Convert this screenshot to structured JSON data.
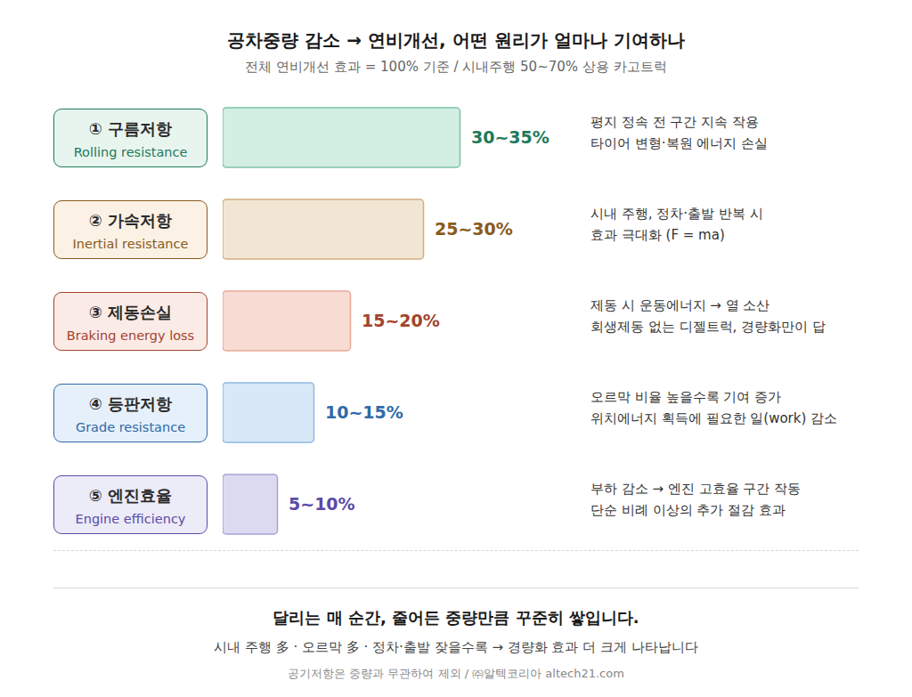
{
  "chart_data": {
    "type": "bar",
    "orientation": "horizontal",
    "title": "공차중량 감소 → 연비개선, 어떤 원리가 얼마나 기여하나",
    "subtitle": "전체 연비개선 효과 = 100% 기준 / 시내주행 50~70% 상용 카고트럭",
    "categories": [
      "① 구름저항",
      "② 가속저항",
      "③ 제동손실",
      "④ 등판저항",
      "⑤ 엔진효율"
    ],
    "category_labels_en": [
      "Rolling resistance",
      "Inertial resistance",
      "Braking energy loss",
      "Grade resistance",
      "Engine efficiency"
    ],
    "values": [
      32.5,
      27.5,
      17.5,
      12.5,
      7.5
    ],
    "value_labels": [
      "30~35%",
      "25~30%",
      "15~20%",
      "10~15%",
      "5~10%"
    ],
    "descriptions": [
      [
        "평지 정속 전 구간 지속 작용",
        "타이어 변형·복원 에너지 손실"
      ],
      [
        "시내 주행, 정차·출발 반복 시",
        "효과 극대화 (F = ma)"
      ],
      [
        "제동 시 운동에너지 → 열 소산",
        "회생제동 없는 디젤트럭, 경량화만이 답"
      ],
      [
        "오르막 비율 높을수록 기여 증가",
        "위치에너지 획득에 필요한 일(work) 감소"
      ],
      [
        "부하 감소 → 엔진 고효율 구간 작동",
        "단순 비례 이상의 추가 절감 효과"
      ]
    ],
    "colors": [
      "#d3eee2",
      "#f1e6d3",
      "#f8dcd4",
      "#d8e8f7",
      "#dcdaf0"
    ],
    "xlim": [
      0,
      50
    ],
    "tick_labels": false,
    "data_labels": true,
    "footer": {
      "headline": "달리는 매 순간, 줄어든 중량만큼 꾸준히 쌓입니다.",
      "note": "시내 주행 多 · 오르막 多 · 정차·출발 잦을수록 → 경량화 효과 더 크게 나타납니다",
      "source": "공기저항은 중량과 무관하여 제외 / ㈜알텍코리아 altech21.com"
    }
  }
}
